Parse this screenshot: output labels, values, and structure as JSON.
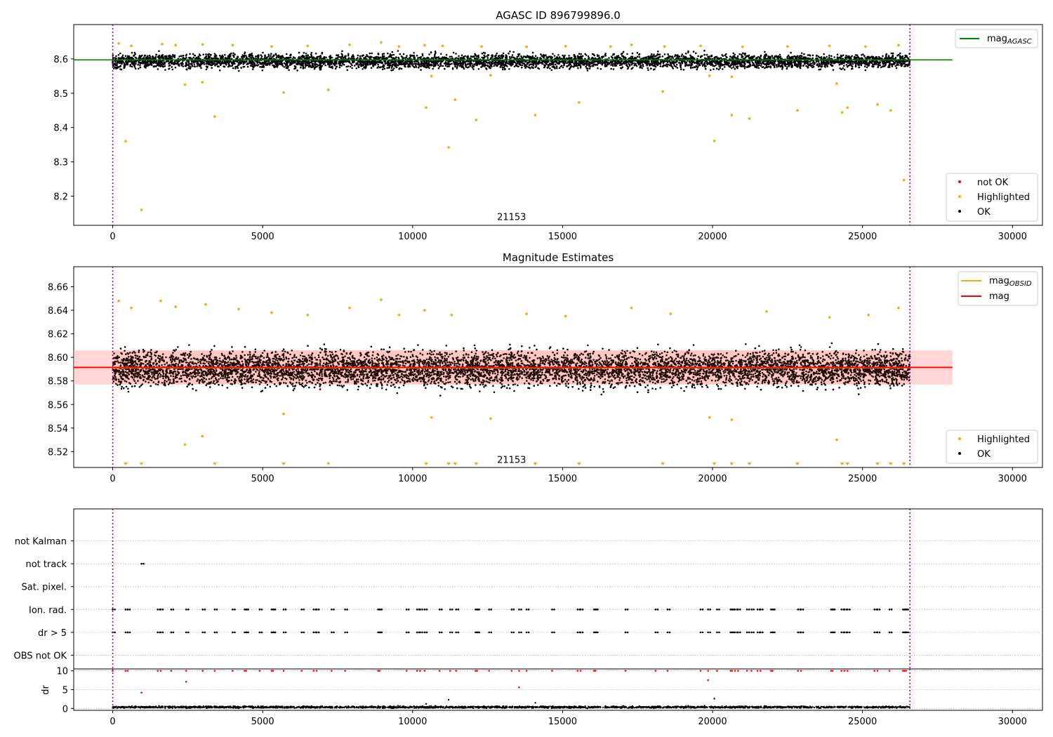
{
  "figure": {
    "title": "AGASC ID 896799896.0"
  },
  "chart_data": [
    {
      "type": "scatter",
      "panel": "agasc",
      "title": "AGASC ID 896799896.0",
      "xlim": [
        -1300,
        31000
      ],
      "ylim": [
        8.115,
        8.7
      ],
      "xticks": [
        0,
        5000,
        10000,
        15000,
        20000,
        25000,
        30000
      ],
      "xtick_labels": [
        "0",
        "5000",
        "10000",
        "15000",
        "20000",
        "25000",
        "30000"
      ],
      "yticks": [
        8.2,
        8.3,
        8.4,
        8.5,
        8.6
      ],
      "ytick_labels": [
        "8.2",
        "8.3",
        "8.4",
        "8.5",
        "8.6"
      ],
      "vlines": [
        0,
        26580
      ],
      "obsid_label": {
        "text": "21153",
        "x": 13300,
        "y": 8.13
      },
      "line": {
        "name": "mag_AGASC",
        "y": 8.597,
        "x_range": [
          -1300,
          28000
        ],
        "color": "#008000"
      },
      "ok_band": {
        "x_range": [
          0,
          26580
        ],
        "y_center": 8.593,
        "y_spread": 0.028,
        "color": "#000000"
      },
      "highlighted": [
        [
          430,
          8.36
        ],
        [
          960,
          8.16
        ],
        [
          2410,
          8.525
        ],
        [
          2990,
          8.532
        ],
        [
          3400,
          8.432
        ],
        [
          5700,
          8.502
        ],
        [
          7190,
          8.51
        ],
        [
          10450,
          8.458
        ],
        [
          10630,
          8.55
        ],
        [
          11200,
          8.342
        ],
        [
          11420,
          8.481
        ],
        [
          12120,
          8.422
        ],
        [
          12600,
          8.552
        ],
        [
          14090,
          8.436
        ],
        [
          15550,
          8.473
        ],
        [
          18340,
          8.505
        ],
        [
          19900,
          8.551
        ],
        [
          20060,
          8.361
        ],
        [
          20640,
          8.436
        ],
        [
          20640,
          8.548
        ],
        [
          21230,
          8.426
        ],
        [
          22830,
          8.45
        ],
        [
          24140,
          8.528
        ],
        [
          24320,
          8.444
        ],
        [
          24500,
          8.458
        ],
        [
          25500,
          8.467
        ],
        [
          25940,
          8.45
        ],
        [
          26380,
          8.247
        ],
        [
          200,
          8.645
        ],
        [
          620,
          8.638
        ],
        [
          1650,
          8.643
        ],
        [
          2100,
          8.64
        ],
        [
          3000,
          8.642
        ],
        [
          4000,
          8.64
        ],
        [
          5300,
          8.636
        ],
        [
          6500,
          8.638
        ],
        [
          7900,
          8.641
        ],
        [
          8950,
          8.648
        ],
        [
          9550,
          8.636
        ],
        [
          10400,
          8.64
        ],
        [
          11000,
          8.638
        ],
        [
          12300,
          8.636
        ],
        [
          13800,
          8.635
        ],
        [
          15100,
          8.637
        ],
        [
          16600,
          8.636
        ],
        [
          17300,
          8.641
        ],
        [
          18400,
          8.636
        ],
        [
          19600,
          8.638
        ],
        [
          21000,
          8.635
        ],
        [
          22500,
          8.636
        ],
        [
          23900,
          8.638
        ],
        [
          25100,
          8.636
        ],
        [
          26200,
          8.64
        ]
      ],
      "legend_main": [
        {
          "label": "mag",
          "sub": "AGASC",
          "color": "#008000"
        }
      ],
      "legend_points": [
        {
          "label": "not OK",
          "color": "#ff0000"
        },
        {
          "label": "Highlighted",
          "color": "#ffa500"
        },
        {
          "label": "OK",
          "color": "#000000"
        }
      ]
    },
    {
      "type": "scatter",
      "panel": "estimates",
      "title": "Magnitude Estimates",
      "xlim": [
        -1300,
        31000
      ],
      "ylim": [
        8.5065,
        8.677
      ],
      "xticks": [
        0,
        5000,
        10000,
        15000,
        20000,
        25000,
        30000
      ],
      "xtick_labels": [
        "0",
        "5000",
        "10000",
        "15000",
        "20000",
        "25000",
        "30000"
      ],
      "yticks": [
        8.52,
        8.54,
        8.56,
        8.58,
        8.6,
        8.62,
        8.64,
        8.66
      ],
      "ytick_labels": [
        "8.52",
        "8.54",
        "8.56",
        "8.58",
        "8.60",
        "8.62",
        "8.64",
        "8.66"
      ],
      "vlines": [
        0,
        26580
      ],
      "obsid_label": {
        "text": "21153",
        "x": 13300,
        "y": 8.5105
      },
      "mag_line": {
        "name": "mag",
        "y": 8.5915,
        "x_range": [
          -1300,
          28000
        ],
        "color": "#ff0000"
      },
      "mag_band": {
        "y_range": [
          8.577,
          8.606
        ],
        "color": "#ffb6b6"
      },
      "obsid_segments": [
        {
          "name": "mag_OBSID",
          "x_range": [
            0,
            26580
          ],
          "y": 8.591,
          "color": "#ffa500"
        }
      ],
      "ok_band": {
        "x_range": [
          0,
          26580
        ],
        "y_center": 8.5905,
        "y_spread": 0.02,
        "color": "#000000"
      },
      "highlighted": [
        [
          2410,
          8.526
        ],
        [
          2990,
          8.533
        ],
        [
          5700,
          8.552
        ],
        [
          10630,
          8.549
        ],
        [
          12600,
          8.548
        ],
        [
          19900,
          8.549
        ],
        [
          20640,
          8.547
        ],
        [
          24140,
          8.53
        ],
        [
          7190,
          8.51
        ],
        [
          200,
          8.648
        ],
        [
          620,
          8.642
        ],
        [
          1600,
          8.648
        ],
        [
          2100,
          8.643
        ],
        [
          3100,
          8.645
        ],
        [
          4200,
          8.641
        ],
        [
          5300,
          8.638
        ],
        [
          6500,
          8.636
        ],
        [
          7900,
          8.642
        ],
        [
          8950,
          8.649
        ],
        [
          9550,
          8.636
        ],
        [
          10400,
          8.64
        ],
        [
          11300,
          8.636
        ],
        [
          13800,
          8.637
        ],
        [
          15100,
          8.635
        ],
        [
          17300,
          8.642
        ],
        [
          18600,
          8.637
        ],
        [
          21800,
          8.639
        ],
        [
          23900,
          8.634
        ],
        [
          25200,
          8.636
        ],
        [
          26200,
          8.642
        ]
      ],
      "out_of_range_markers": [
        430,
        960,
        3400,
        5700,
        10450,
        11200,
        11420,
        12120,
        14090,
        15550,
        18340,
        20060,
        20640,
        21230,
        22830,
        24320,
        24500,
        25500,
        25940,
        26380
      ],
      "legend_main": [
        {
          "label": "mag",
          "sub": "OBSID",
          "color": "#ffa500"
        },
        {
          "label": "mag",
          "sub": "",
          "color": "#ff0000"
        }
      ],
      "legend_points": [
        {
          "label": "Highlighted",
          "color": "#ffa500"
        },
        {
          "label": "OK",
          "color": "#000000"
        }
      ]
    },
    {
      "type": "scatter",
      "panel": "flags",
      "xlim": [
        -1300,
        31000
      ],
      "categories": [
        "OBS not OK",
        "dr > 5",
        "Ion. rad.",
        "Sat. pixel.",
        "not track",
        "not Kalman"
      ],
      "vlines": [
        0,
        26580
      ],
      "points": [
        {
          "category": "not track",
          "x": [
            960
          ]
        },
        {
          "category": "Ion. rad.",
          "x": [
            0,
            430,
            500,
            1500,
            1600,
            1950,
            2450,
            3000,
            3400,
            4000,
            4400,
            4450,
            4900,
            5300,
            5350,
            5700,
            6300,
            6700,
            6800,
            7300,
            7750,
            8850,
            8900,
            9800,
            10150,
            10250,
            10400,
            10900,
            11250,
            11450,
            12100,
            12150,
            12550,
            13300,
            13550,
            13800,
            14650,
            15500,
            15600,
            16050,
            16100,
            17100,
            18100,
            18500,
            19600,
            19850,
            20150,
            20600,
            20650,
            20750,
            20850,
            21150,
            21300,
            21500,
            21600,
            21950,
            22000,
            22850,
            22950,
            23950,
            24000,
            24300,
            24400,
            24500,
            25400,
            25500,
            25900,
            26350,
            26400,
            26450
          ]
        },
        {
          "category": "dr > 5",
          "x": [
            0,
            430,
            500,
            1500,
            1600,
            1950,
            2450,
            3000,
            3400,
            4000,
            4400,
            4450,
            4900,
            5300,
            5350,
            5700,
            6300,
            6700,
            6800,
            7300,
            7750,
            8850,
            8900,
            9800,
            10150,
            10250,
            10400,
            10900,
            11250,
            11450,
            12100,
            12150,
            12550,
            13300,
            13550,
            13800,
            14650,
            15500,
            15600,
            16050,
            16100,
            17100,
            18100,
            18500,
            19600,
            19850,
            20150,
            20600,
            20650,
            20750,
            20850,
            21150,
            21300,
            21500,
            21600,
            21950,
            22000,
            22850,
            22950,
            23950,
            24000,
            24300,
            24400,
            24500,
            25400,
            25500,
            25900,
            26350,
            26400,
            26450
          ]
        }
      ]
    },
    {
      "type": "scatter",
      "panel": "dr",
      "ylabel": "dr",
      "xlim": [
        -1300,
        31000
      ],
      "ylim": [
        -0.5,
        10.5
      ],
      "xticks": [
        0,
        5000,
        10000,
        15000,
        20000,
        25000,
        30000
      ],
      "xtick_labels": [
        "0",
        "5000",
        "10000",
        "15000",
        "20000",
        "25000",
        "30000"
      ],
      "yticks": [
        0,
        5,
        10
      ],
      "ytick_labels": [
        "0",
        "5",
        "10"
      ],
      "vlines": [
        0,
        26580
      ],
      "red_points": [
        [
          960,
          4.2
        ],
        [
          2450,
          7.1
        ],
        [
          13550,
          5.6
        ],
        [
          19850,
          7.5
        ],
        [
          0,
          10
        ],
        [
          430,
          10
        ],
        [
          500,
          10
        ],
        [
          1500,
          10
        ],
        [
          1600,
          10
        ],
        [
          1950,
          10
        ],
        [
          2450,
          10
        ],
        [
          3000,
          10
        ],
        [
          3400,
          10
        ],
        [
          4000,
          10
        ],
        [
          4400,
          10
        ],
        [
          4450,
          10
        ],
        [
          4900,
          10
        ],
        [
          5300,
          10
        ],
        [
          5350,
          10
        ],
        [
          5700,
          10
        ],
        [
          6300,
          10
        ],
        [
          6700,
          10
        ],
        [
          6800,
          10
        ],
        [
          7300,
          10
        ],
        [
          7750,
          10
        ],
        [
          8850,
          10
        ],
        [
          8900,
          10
        ],
        [
          9800,
          10
        ],
        [
          10150,
          10
        ],
        [
          10250,
          10
        ],
        [
          10400,
          10
        ],
        [
          10900,
          10
        ],
        [
          11250,
          10
        ],
        [
          11450,
          10
        ],
        [
          12100,
          10
        ],
        [
          12150,
          10
        ],
        [
          12550,
          10
        ],
        [
          13300,
          10
        ],
        [
          13550,
          10
        ],
        [
          13800,
          10
        ],
        [
          14650,
          10
        ],
        [
          15500,
          10
        ],
        [
          15600,
          10
        ],
        [
          16050,
          10
        ],
        [
          16100,
          10
        ],
        [
          17100,
          10
        ],
        [
          18100,
          10
        ],
        [
          18500,
          10
        ],
        [
          19600,
          10
        ],
        [
          19850,
          10
        ],
        [
          20150,
          10
        ],
        [
          20600,
          10
        ],
        [
          20650,
          10
        ],
        [
          20750,
          10
        ],
        [
          20850,
          10
        ],
        [
          21150,
          10
        ],
        [
          21300,
          10
        ],
        [
          21500,
          10
        ],
        [
          21600,
          10
        ],
        [
          21950,
          10
        ],
        [
          22000,
          10
        ],
        [
          22850,
          10
        ],
        [
          22950,
          10
        ],
        [
          23950,
          10
        ],
        [
          24000,
          10
        ],
        [
          24300,
          10
        ],
        [
          24400,
          10
        ],
        [
          24500,
          10
        ],
        [
          25400,
          10
        ],
        [
          25500,
          10
        ],
        [
          25900,
          10
        ],
        [
          26350,
          10
        ],
        [
          26400,
          10
        ],
        [
          26450,
          10
        ]
      ],
      "black_points": [
        [
          11200,
          2.3
        ],
        [
          20060,
          2.6
        ],
        [
          14090,
          1.5
        ],
        [
          10450,
          1.2
        ]
      ],
      "ok_band": {
        "x_range": [
          0,
          26580
        ],
        "y_center": 0.35,
        "y_spread": 0.35,
        "color": "#000000"
      }
    }
  ],
  "colors": {
    "ok": "#000000",
    "highlighted": "#ffa500",
    "not_ok": "#ff0000",
    "vline": "#800080",
    "grid": "#b0b0b0"
  }
}
